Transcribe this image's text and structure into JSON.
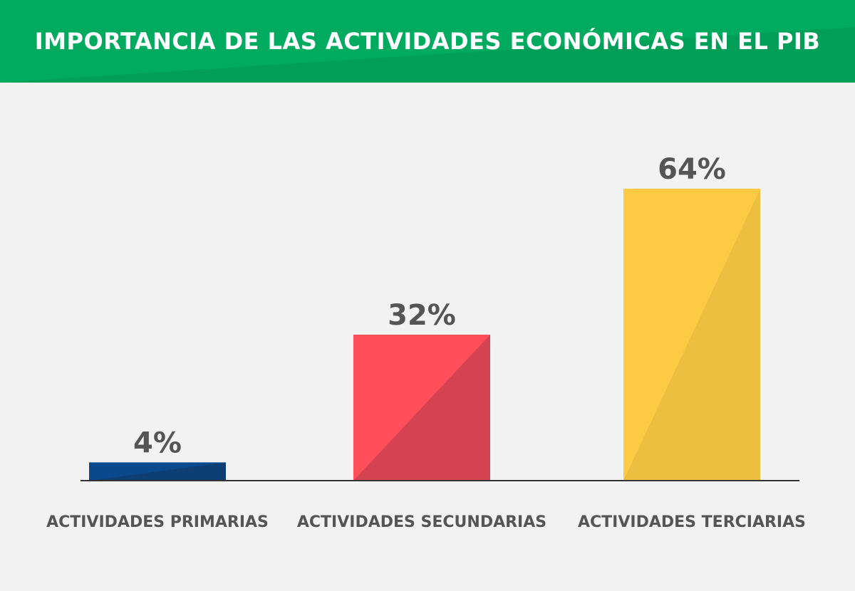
{
  "header": {
    "title": "IMPORTANCIA DE LAS ACTIVIDADES ECONÓMICAS EN EL PIB"
  },
  "colors": {
    "banner": "#00aa5e",
    "background": "#f2f2f2",
    "text": "#555555",
    "axis": "#333333"
  },
  "chart_data": {
    "type": "bar",
    "title": "IMPORTANCIA DE LAS ACTIVIDADES ECONÓMICAS EN EL PIB",
    "categories": [
      "ACTIVIDADES PRIMARIAS",
      "ACTIVIDADES SECUNDARIAS",
      "ACTIVIDADES TERCIARIAS"
    ],
    "values": [
      4,
      32,
      64
    ],
    "value_labels": [
      "4%",
      "32%",
      "64%"
    ],
    "bar_colors": [
      "#0a4a8c",
      "#ff4f5b",
      "#fdcb43"
    ],
    "bar_shade_colors": [
      "#0d3f75",
      "#d44350",
      "#ecbf40"
    ],
    "ylim": [
      0,
      64
    ],
    "grid": false,
    "legend": "none"
  }
}
